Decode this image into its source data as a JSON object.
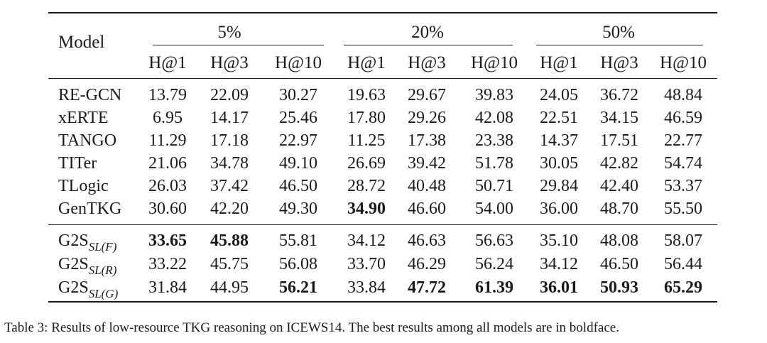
{
  "table": {
    "corner_label": "Model",
    "groups": [
      "5%",
      "20%",
      "50%"
    ],
    "metrics": [
      "H@1",
      "H@3",
      "H@10",
      "H@1",
      "H@3",
      "H@10",
      "H@1",
      "H@3",
      "H@10"
    ],
    "rows": [
      {
        "name": "RE-GCN",
        "values": [
          "13.79",
          "22.09",
          "30.27",
          "19.63",
          "29.67",
          "39.83",
          "24.05",
          "36.72",
          "48.84"
        ],
        "bold": []
      },
      {
        "name": "xERTE",
        "values": [
          "6.95",
          "14.17",
          "25.46",
          "17.80",
          "29.26",
          "42.08",
          "22.51",
          "34.15",
          "46.59"
        ],
        "bold": []
      },
      {
        "name": "TANGO",
        "values": [
          "11.29",
          "17.18",
          "22.97",
          "11.25",
          "17.38",
          "23.38",
          "14.37",
          "17.51",
          "22.77"
        ],
        "bold": []
      },
      {
        "name": "TITer",
        "values": [
          "21.06",
          "34.78",
          "49.10",
          "26.69",
          "39.42",
          "51.78",
          "30.05",
          "42.82",
          "54.74"
        ],
        "bold": []
      },
      {
        "name": "TLogic",
        "values": [
          "26.03",
          "37.42",
          "46.50",
          "28.72",
          "40.48",
          "50.71",
          "29.84",
          "42.40",
          "53.37"
        ],
        "bold": []
      },
      {
        "name": "GenTKG",
        "values": [
          "30.60",
          "42.20",
          "49.30",
          "34.90",
          "46.60",
          "54.00",
          "36.00",
          "48.70",
          "55.50"
        ],
        "bold": [
          3
        ]
      },
      {
        "name": "G2S",
        "sub": "SL(F)",
        "values": [
          "33.65",
          "45.88",
          "55.81",
          "34.12",
          "46.63",
          "56.63",
          "35.10",
          "48.08",
          "58.07"
        ],
        "bold": [
          0,
          1
        ]
      },
      {
        "name": "G2S",
        "sub": "SL(R)",
        "values": [
          "33.22",
          "45.75",
          "56.08",
          "33.70",
          "46.29",
          "56.24",
          "34.12",
          "46.50",
          "56.44"
        ],
        "bold": []
      },
      {
        "name": "G2S",
        "sub": "SL(G)",
        "values": [
          "31.84",
          "44.95",
          "56.21",
          "33.84",
          "47.72",
          "61.39",
          "36.01",
          "50.93",
          "65.29"
        ],
        "bold": [
          2,
          4,
          5,
          6,
          7,
          8
        ]
      }
    ]
  },
  "caption": "Table 3: Results of low-resource TKG reasoning on ICEWS14. The best results among all models are in boldface."
}
